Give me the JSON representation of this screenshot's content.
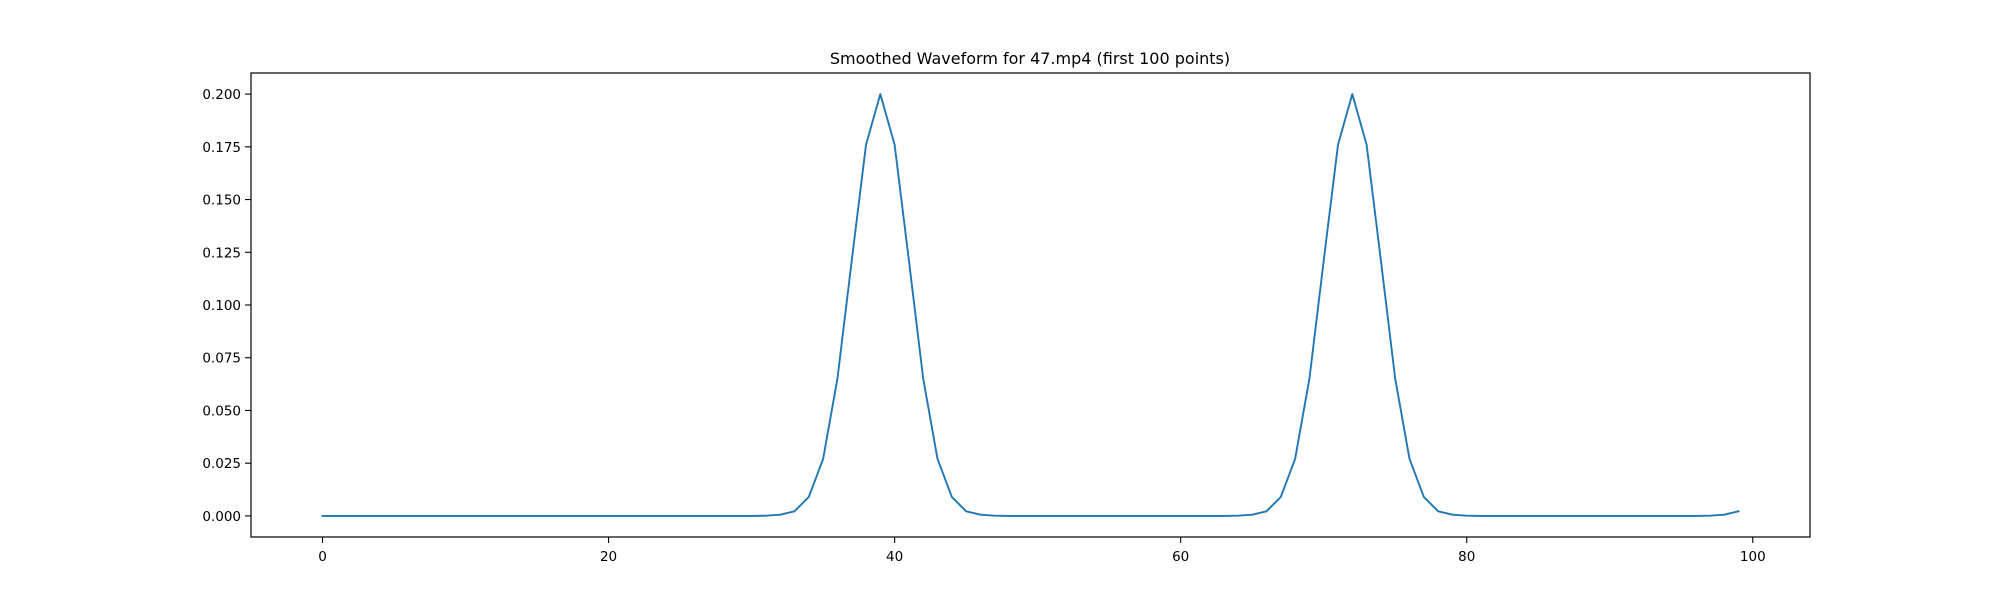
{
  "chart_data": {
    "type": "line",
    "title": "Smoothed Waveform for 47.mp4 (first 100 points)",
    "xlabel": "",
    "ylabel": "",
    "xlim": [
      -5,
      104
    ],
    "ylim": [
      -0.01,
      0.21
    ],
    "xticks": [
      0,
      20,
      40,
      60,
      80,
      100
    ],
    "xtick_labels": [
      "0",
      "20",
      "40",
      "60",
      "80",
      "100"
    ],
    "yticks": [
      0.0,
      0.025,
      0.05,
      0.075,
      0.1,
      0.125,
      0.15,
      0.175,
      0.2
    ],
    "ytick_labels": [
      "0.000",
      "0.025",
      "0.050",
      "0.075",
      "0.100",
      "0.125",
      "0.150",
      "0.175",
      "0.200"
    ],
    "grid": false,
    "legend": "none",
    "series": [
      {
        "color": "#1f77b4",
        "x": [
          0,
          1,
          2,
          3,
          4,
          5,
          6,
          7,
          8,
          9,
          10,
          11,
          12,
          13,
          14,
          15,
          16,
          17,
          18,
          19,
          20,
          21,
          22,
          23,
          24,
          25,
          26,
          27,
          28,
          29,
          30,
          31,
          32,
          33,
          34,
          35,
          36,
          37,
          38,
          39,
          40,
          41,
          42,
          43,
          44,
          45,
          46,
          47,
          48,
          49,
          50,
          51,
          52,
          53,
          54,
          55,
          56,
          57,
          58,
          59,
          60,
          61,
          62,
          63,
          64,
          65,
          66,
          67,
          68,
          69,
          70,
          71,
          72,
          73,
          74,
          75,
          76,
          77,
          78,
          79,
          80,
          81,
          82,
          83,
          84,
          85,
          86,
          87,
          88,
          89,
          90,
          91,
          92,
          93,
          94,
          95,
          96,
          97,
          98,
          99
        ],
        "y": [
          0,
          0,
          0,
          0,
          0,
          0,
          0,
          0,
          0,
          0,
          0,
          0,
          0,
          0,
          0,
          0,
          0,
          0,
          0,
          0,
          0,
          0,
          0,
          0,
          0,
          0,
          0,
          0,
          0,
          0,
          0,
          0.0001,
          0.0006,
          0.0022,
          0.009,
          0.027,
          0.065,
          0.121,
          0.176,
          0.2,
          0.176,
          0.121,
          0.065,
          0.027,
          0.009,
          0.0022,
          0.0006,
          0.0001,
          0,
          0,
          0,
          0,
          0,
          0,
          0,
          0,
          0,
          0,
          0,
          0,
          0,
          0,
          0,
          0,
          0.0001,
          0.0006,
          0.0022,
          0.009,
          0.027,
          0.065,
          0.121,
          0.176,
          0.2,
          0.176,
          0.121,
          0.065,
          0.027,
          0.009,
          0.0022,
          0.0006,
          0.0001,
          0,
          0,
          0,
          0,
          0,
          0,
          0,
          0,
          0,
          0,
          0,
          0,
          0,
          0,
          0,
          0,
          0.0001,
          0.0006,
          0.0022
        ]
      }
    ]
  }
}
